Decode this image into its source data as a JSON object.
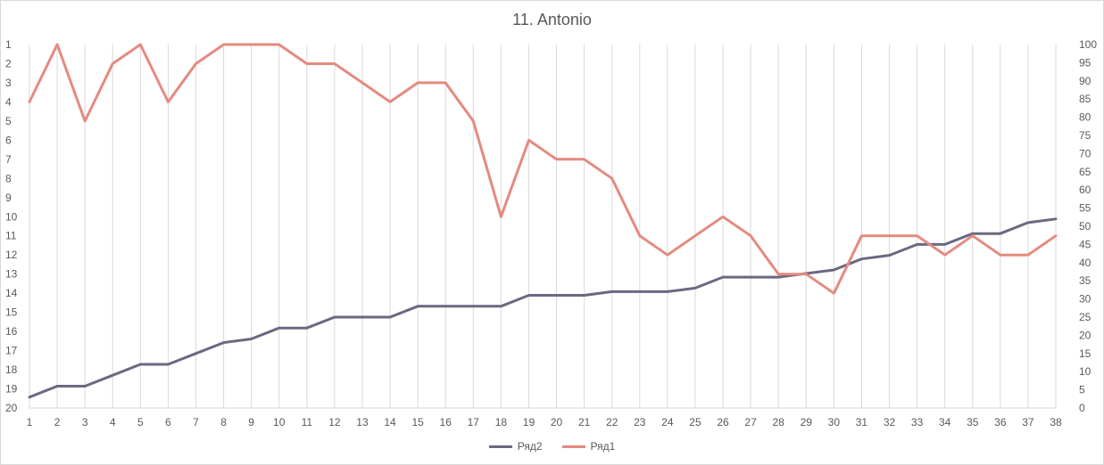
{
  "chart_data": {
    "type": "line",
    "title": "11. Antonio",
    "x": [
      1,
      2,
      3,
      4,
      5,
      6,
      7,
      8,
      9,
      10,
      11,
      12,
      13,
      14,
      15,
      16,
      17,
      18,
      19,
      20,
      21,
      22,
      23,
      24,
      25,
      26,
      27,
      28,
      29,
      30,
      31,
      32,
      33,
      34,
      35,
      36,
      37,
      38
    ],
    "y_left_ticks": [
      1,
      2,
      3,
      4,
      5,
      6,
      7,
      8,
      9,
      10,
      11,
      12,
      13,
      14,
      15,
      16,
      17,
      18,
      19,
      20
    ],
    "y_left_lim": [
      1,
      20
    ],
    "y_left_inverted": true,
    "y_right_ticks": [
      0,
      5,
      10,
      15,
      20,
      25,
      30,
      35,
      40,
      45,
      50,
      55,
      60,
      65,
      70,
      75,
      80,
      85,
      90,
      95,
      100
    ],
    "y_right_lim": [
      0,
      100
    ],
    "grid": "vertical",
    "legend": "bottom",
    "series": [
      {
        "name": "Ряд2",
        "axis": "right",
        "color": "#6b6880",
        "values": [
          3,
          6,
          6,
          9,
          12,
          12,
          15,
          18,
          19,
          22,
          22,
          25,
          25,
          25,
          28,
          28,
          28,
          28,
          31,
          31,
          31,
          32,
          32,
          32,
          33,
          36,
          36,
          36,
          37,
          38,
          41,
          42,
          45,
          45,
          48,
          48,
          51,
          52
        ]
      },
      {
        "name": "Ряд1",
        "axis": "left",
        "color": "#e48a80",
        "values": [
          4,
          1,
          5,
          2,
          1,
          4,
          2,
          1,
          1,
          1,
          2,
          2,
          3,
          4,
          3,
          3,
          5,
          10,
          6,
          7,
          7,
          8,
          11,
          12,
          11,
          10,
          11,
          13,
          13,
          14,
          11,
          11,
          11,
          12,
          11,
          12,
          12,
          11
        ]
      }
    ]
  }
}
